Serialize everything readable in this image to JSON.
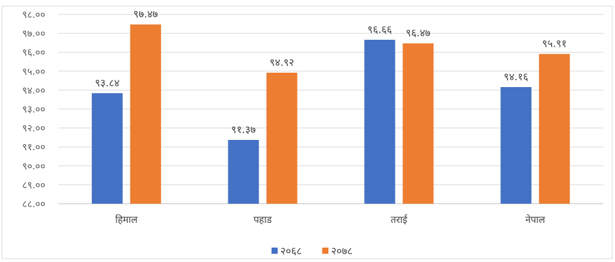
{
  "chart_data": {
    "type": "bar",
    "categories": [
      "हिमाल",
      "पहाड",
      "तराई",
      "नेपाल"
    ],
    "series": [
      {
        "name": "२०६८",
        "values": [
          93.84,
          91.37,
          96.66,
          94.16
        ],
        "labels": [
          "९३.८४",
          "९१.३७",
          "९६.६६",
          "९४.१६"
        ],
        "color": "#4472C4"
      },
      {
        "name": "२०७८",
        "values": [
          97.47,
          94.92,
          96.47,
          95.91
        ],
        "labels": [
          "९७.४७",
          "९४.९२",
          "९६.४७",
          "९५.९१"
        ],
        "color": "#ED7D31"
      }
    ],
    "ylim": [
      88,
      98
    ],
    "yticks": [
      88,
      89,
      90,
      91,
      92,
      93,
      94,
      95,
      96,
      97,
      98
    ],
    "ytick_labels": [
      "८८.००",
      "८९.००",
      "९०.००",
      "९१.००",
      "९२.००",
      "९३.००",
      "९४.००",
      "९५.००",
      "९६.००",
      "९७.००",
      "९८.००"
    ],
    "grid": true,
    "legend": "bottom"
  }
}
